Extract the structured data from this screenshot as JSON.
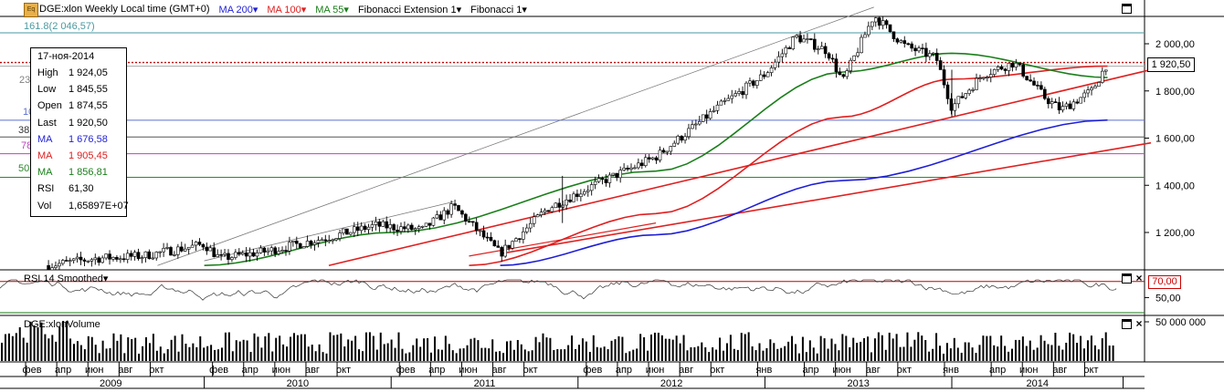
{
  "toolbar": {
    "symbol_title": "DGE:xlon Weekly Local time (GMT+0)",
    "ma200_label": "MA 200",
    "ma100_label": "MA 100",
    "ma55_label": "MA 55",
    "fib_ext_label": "Fibonacci Extension 1",
    "fib_label": "Fibonacci 1",
    "dropdown_glyph": "▾"
  },
  "fib_labels": {
    "ext_1618": "161.8(2 046,57)",
    "partial_23": "23",
    "partial_10": "10",
    "partial_38": "38",
    "partial_78": "78",
    "partial_50": "50"
  },
  "info_box": {
    "date": "17-ноя-2014",
    "rows": [
      {
        "key": "High",
        "value": "1 924,05",
        "color": "#000000"
      },
      {
        "key": "Low",
        "value": "1 845,55",
        "color": "#000000"
      },
      {
        "key": "Open",
        "value": "1 874,55",
        "color": "#000000"
      },
      {
        "key": "Last",
        "value": "1 920,50",
        "color": "#000000"
      },
      {
        "key": "MA",
        "value": "1 676,58",
        "color": "#1f1fd6"
      },
      {
        "key": "MA",
        "value": "1 905,45",
        "color": "#e02020"
      },
      {
        "key": "MA",
        "value": "1 856,81",
        "color": "#1a7f1a"
      },
      {
        "key": "RSI",
        "value": "61,30",
        "color": "#000000"
      },
      {
        "key": "Vol",
        "value": "1,65897E+07",
        "color": "#000000"
      }
    ]
  },
  "price_axis": {
    "ticks": [
      "2 000,00",
      "1 800,00",
      "1 600,00",
      "1 400,00",
      "1 200,00"
    ],
    "last_price_label": "1 920,50"
  },
  "rsi_panel": {
    "title": "RSI 14 Smoothed",
    "level_label": "70,00",
    "tick": "50,00"
  },
  "volume_panel": {
    "title": "DGE:xlonVolume",
    "tick": "50 000 000"
  },
  "time_axis": {
    "months": [
      "фев",
      "апр",
      "июн",
      "авг",
      "окт",
      "фев",
      "апр",
      "июн",
      "авг",
      "окт",
      "фев",
      "апр",
      "июн",
      "авг",
      "окт",
      "фев",
      "апр",
      "июн",
      "авг",
      "окт",
      "янв",
      "апр",
      "июн",
      "авг",
      "окт",
      "янв",
      "апр",
      "июн",
      "авг",
      "окт"
    ],
    "years": [
      "2009",
      "2010",
      "2011",
      "2012",
      "2013",
      "2014"
    ]
  },
  "colors": {
    "ma200": "#1f1fd6",
    "ma100": "#e02020",
    "ma55": "#1a7f1a",
    "trendline": "#e02020",
    "fib_blue": "#5b6fd0",
    "fib_magenta": "#c040c0",
    "fib_teal": "#4a9aa0"
  },
  "chart_data": {
    "type": "candlestick",
    "title": "DGE:xlon Weekly",
    "xlabel": "",
    "ylabel": "",
    "ylim": [
      1060,
      2150
    ],
    "grid": false,
    "x_range": [
      "2009-01",
      "2014-11"
    ],
    "series_price_anchors": [
      {
        "x": "2009-03",
        "y": 1060
      },
      {
        "x": "2009-06",
        "y": 1090
      },
      {
        "x": "2009-09",
        "y": 1100
      },
      {
        "x": "2010-01",
        "y": 1150
      },
      {
        "x": "2010-02",
        "y": 1090
      },
      {
        "x": "2010-05",
        "y": 1120
      },
      {
        "x": "2010-09",
        "y": 1180
      },
      {
        "x": "2010-12",
        "y": 1230
      },
      {
        "x": "2011-03",
        "y": 1210
      },
      {
        "x": "2011-05",
        "y": 1310
      },
      {
        "x": "2011-08",
        "y": 1110
      },
      {
        "x": "2011-11",
        "y": 1300
      },
      {
        "x": "2012-02",
        "y": 1400
      },
      {
        "x": "2012-06",
        "y": 1520
      },
      {
        "x": "2012-10",
        "y": 1730
      },
      {
        "x": "2013-01",
        "y": 1870
      },
      {
        "x": "2013-03",
        "y": 2030
      },
      {
        "x": "2013-05",
        "y": 1970
      },
      {
        "x": "2013-06",
        "y": 1840
      },
      {
        "x": "2013-08",
        "y": 2120
      },
      {
        "x": "2013-10",
        "y": 1990
      },
      {
        "x": "2013-12",
        "y": 1940
      },
      {
        "x": "2014-01",
        "y": 1730
      },
      {
        "x": "2014-03",
        "y": 1870
      },
      {
        "x": "2014-05",
        "y": 1920
      },
      {
        "x": "2014-07",
        "y": 1770
      },
      {
        "x": "2014-08",
        "y": 1720
      },
      {
        "x": "2014-10",
        "y": 1800
      },
      {
        "x": "2014-11",
        "y": 1920.5
      }
    ],
    "last": {
      "date": "2014-11-17",
      "open": 1874.55,
      "high": 1924.05,
      "low": 1845.55,
      "close": 1920.5
    },
    "series": [
      {
        "name": "MA 200",
        "anchors": [
          {
            "x": "2011-08",
            "y": 1060
          },
          {
            "x": "2012-06",
            "y": 1190
          },
          {
            "x": "2013-06",
            "y": 1420
          },
          {
            "x": "2014-11",
            "y": 1676.58
          }
        ]
      },
      {
        "name": "MA 100",
        "anchors": [
          {
            "x": "2011-06",
            "y": 1060
          },
          {
            "x": "2012-06",
            "y": 1280
          },
          {
            "x": "2013-06",
            "y": 1690
          },
          {
            "x": "2014-01",
            "y": 1850
          },
          {
            "x": "2014-11",
            "y": 1905.45
          }
        ]
      },
      {
        "name": "MA 55",
        "anchors": [
          {
            "x": "2010-01",
            "y": 1060
          },
          {
            "x": "2011-01",
            "y": 1200
          },
          {
            "x": "2012-06",
            "y": 1460
          },
          {
            "x": "2013-06",
            "y": 1880
          },
          {
            "x": "2014-01",
            "y": 1960
          },
          {
            "x": "2014-11",
            "y": 1856.81
          }
        ]
      }
    ],
    "fibonacci_levels": [
      {
        "label": "161.8",
        "value": 2046.57
      }
    ],
    "rsi": {
      "name": "RSI 14 Smoothed",
      "level": 70,
      "last": 61.3,
      "ylim": [
        30,
        80
      ]
    },
    "volume": {
      "name": "DGE:xlonVolume",
      "last": 16589700,
      "tick": 50000000
    }
  }
}
